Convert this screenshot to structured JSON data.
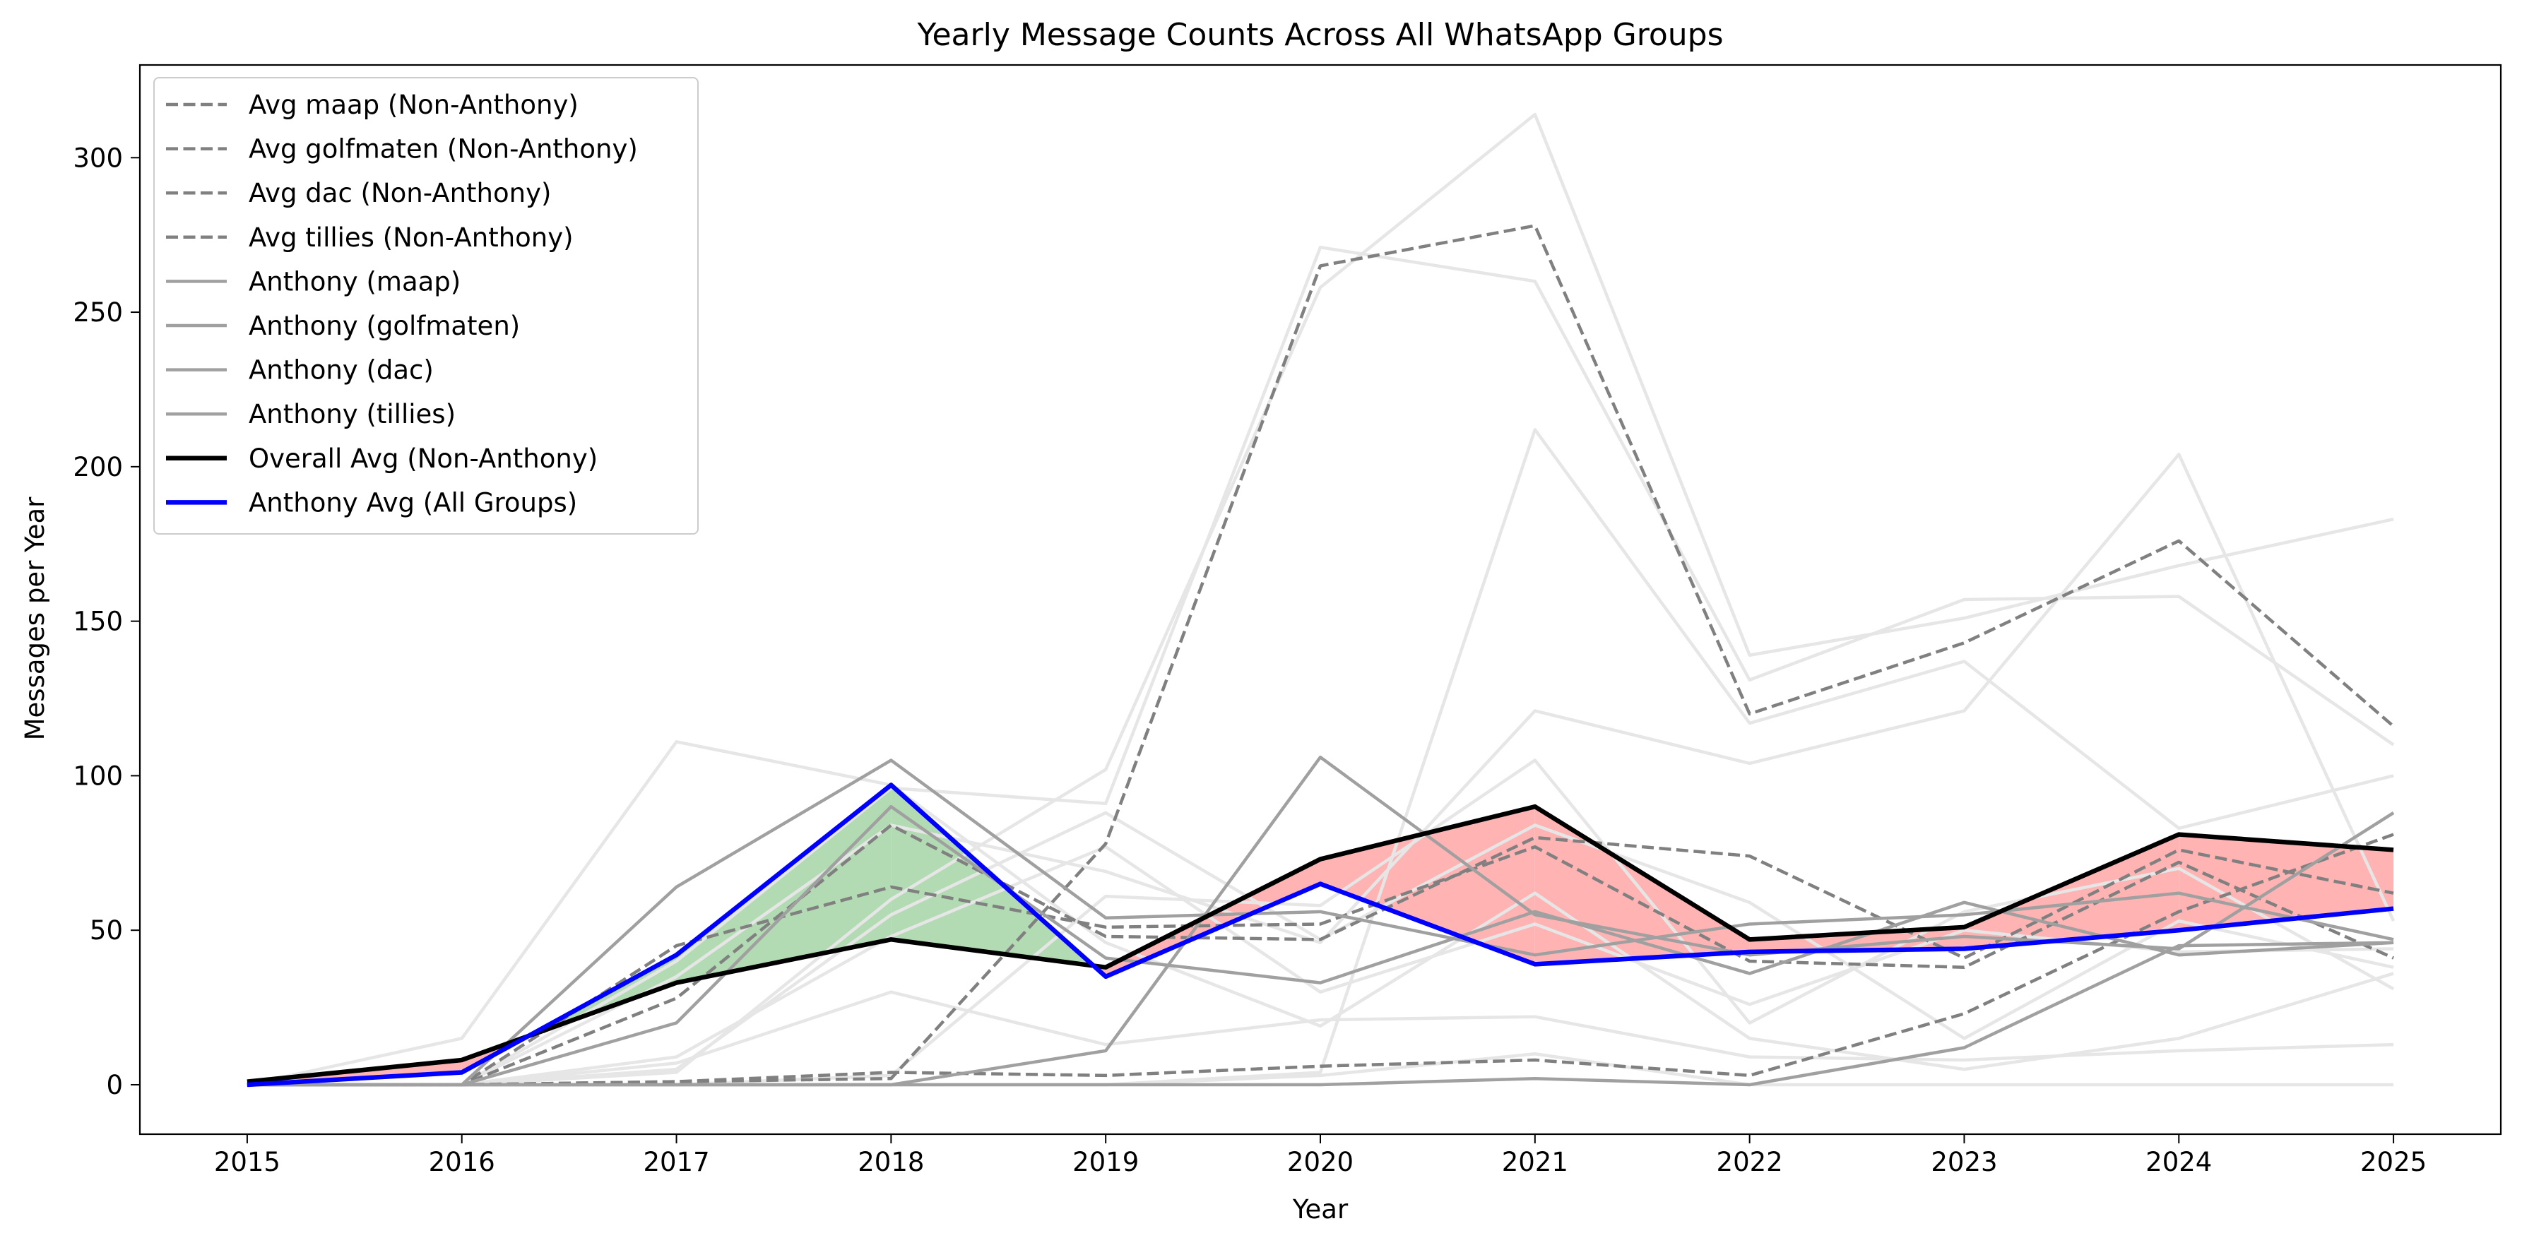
{
  "chart_data": {
    "type": "line",
    "title": "Yearly Message Counts Across All WhatsApp Groups",
    "xlabel": "Year",
    "ylabel": "Messages per Year",
    "x": [
      2015,
      2016,
      2017,
      2018,
      2019,
      2020,
      2021,
      2022,
      2023,
      2024,
      2025
    ],
    "xlim": [
      2014.5,
      2025.5
    ],
    "ylim": [
      -16,
      330
    ],
    "yticks": [
      0,
      50,
      100,
      150,
      200,
      250,
      300
    ],
    "grid": false,
    "legend_position": "upper-left",
    "colors": {
      "avg_dashed": "#808080",
      "anthony_group": "#a0a0a0",
      "background_lines": "#e6e6e6",
      "overall": "#000000",
      "anthony_avg": "#0000ff",
      "fill_above": "#b3dbb3",
      "fill_below": "#ffb3b3"
    },
    "background_series": [
      {
        "values": [
          0,
          15,
          111,
          97,
          46,
          19,
          62,
          15,
          5,
          15,
          36
        ]
      },
      {
        "values": [
          0,
          0,
          40,
          96,
          91,
          271,
          260,
          131,
          157,
          158,
          110
        ]
      },
      {
        "values": [
          0,
          0,
          4,
          60,
          102,
          258,
          314,
          139,
          151,
          168,
          183
        ]
      },
      {
        "values": [
          0,
          0,
          9,
          48,
          77,
          30,
          52,
          26,
          50,
          43,
          44
        ]
      },
      {
        "values": [
          0,
          0,
          35,
          84,
          69,
          46,
          121,
          104,
          121,
          204,
          53
        ]
      },
      {
        "values": [
          0,
          0,
          5,
          55,
          88,
          47,
          84,
          59,
          15,
          53,
          38
        ]
      },
      {
        "values": [
          0,
          0,
          7,
          30,
          13,
          21,
          22,
          9,
          8,
          11,
          13
        ]
      },
      {
        "values": [
          0,
          0,
          0,
          0,
          0,
          3,
          10,
          0,
          0,
          0,
          0
        ]
      },
      {
        "values": [
          0,
          0,
          0,
          3,
          61,
          58,
          105,
          20,
          56,
          70,
          31
        ]
      },
      {
        "values": [
          0,
          0,
          0,
          0,
          0,
          4,
          212,
          117,
          137,
          83,
          100
        ]
      }
    ],
    "series": [
      {
        "name": "Avg maap (Non-Anthony)",
        "style": "dashed",
        "values": [
          0,
          0,
          28,
          84,
          48,
          47,
          80,
          74,
          41,
          76,
          62
        ]
      },
      {
        "name": "Avg golfmaten (Non-Anthony)",
        "style": "dashed",
        "values": [
          0,
          0,
          1,
          2,
          78,
          265,
          278,
          120,
          143,
          176,
          116
        ]
      },
      {
        "name": "Avg dac (Non-Anthony)",
        "style": "dashed",
        "values": [
          0,
          0,
          1,
          4,
          3,
          6,
          8,
          3,
          23,
          56,
          81
        ]
      },
      {
        "name": "Avg tillies (Non-Anthony)",
        "style": "dashed",
        "values": [
          0,
          0,
          45,
          64,
          51,
          52,
          77,
          40,
          38,
          72,
          41
        ]
      },
      {
        "name": "Anthony (maap)",
        "style": "solid",
        "values": [
          0,
          0,
          64,
          105,
          54,
          56,
          42,
          52,
          55,
          62,
          47
        ]
      },
      {
        "name": "Anthony (golfmaten)",
        "style": "solid",
        "values": [
          0,
          0,
          20,
          90,
          41,
          33,
          56,
          36,
          59,
          42,
          46
        ]
      },
      {
        "name": "Anthony (dac)",
        "style": "solid",
        "values": [
          0,
          0,
          0,
          0,
          11,
          106,
          55,
          42,
          48,
          44,
          88
        ]
      },
      {
        "name": "Anthony (tillies)",
        "style": "solid",
        "values": [
          0,
          0,
          0,
          0,
          0,
          0,
          2,
          0,
          12,
          45,
          46
        ]
      },
      {
        "name": "Overall Avg (Non-Anthony)",
        "style": "bold",
        "values": [
          1,
          8,
          33,
          47,
          38,
          73,
          90,
          47,
          51,
          81,
          76
        ]
      },
      {
        "name": "Anthony Avg (All Groups)",
        "style": "blue",
        "values": [
          0,
          4,
          42,
          97,
          35,
          65,
          39,
          43,
          44,
          50,
          57
        ]
      }
    ]
  }
}
